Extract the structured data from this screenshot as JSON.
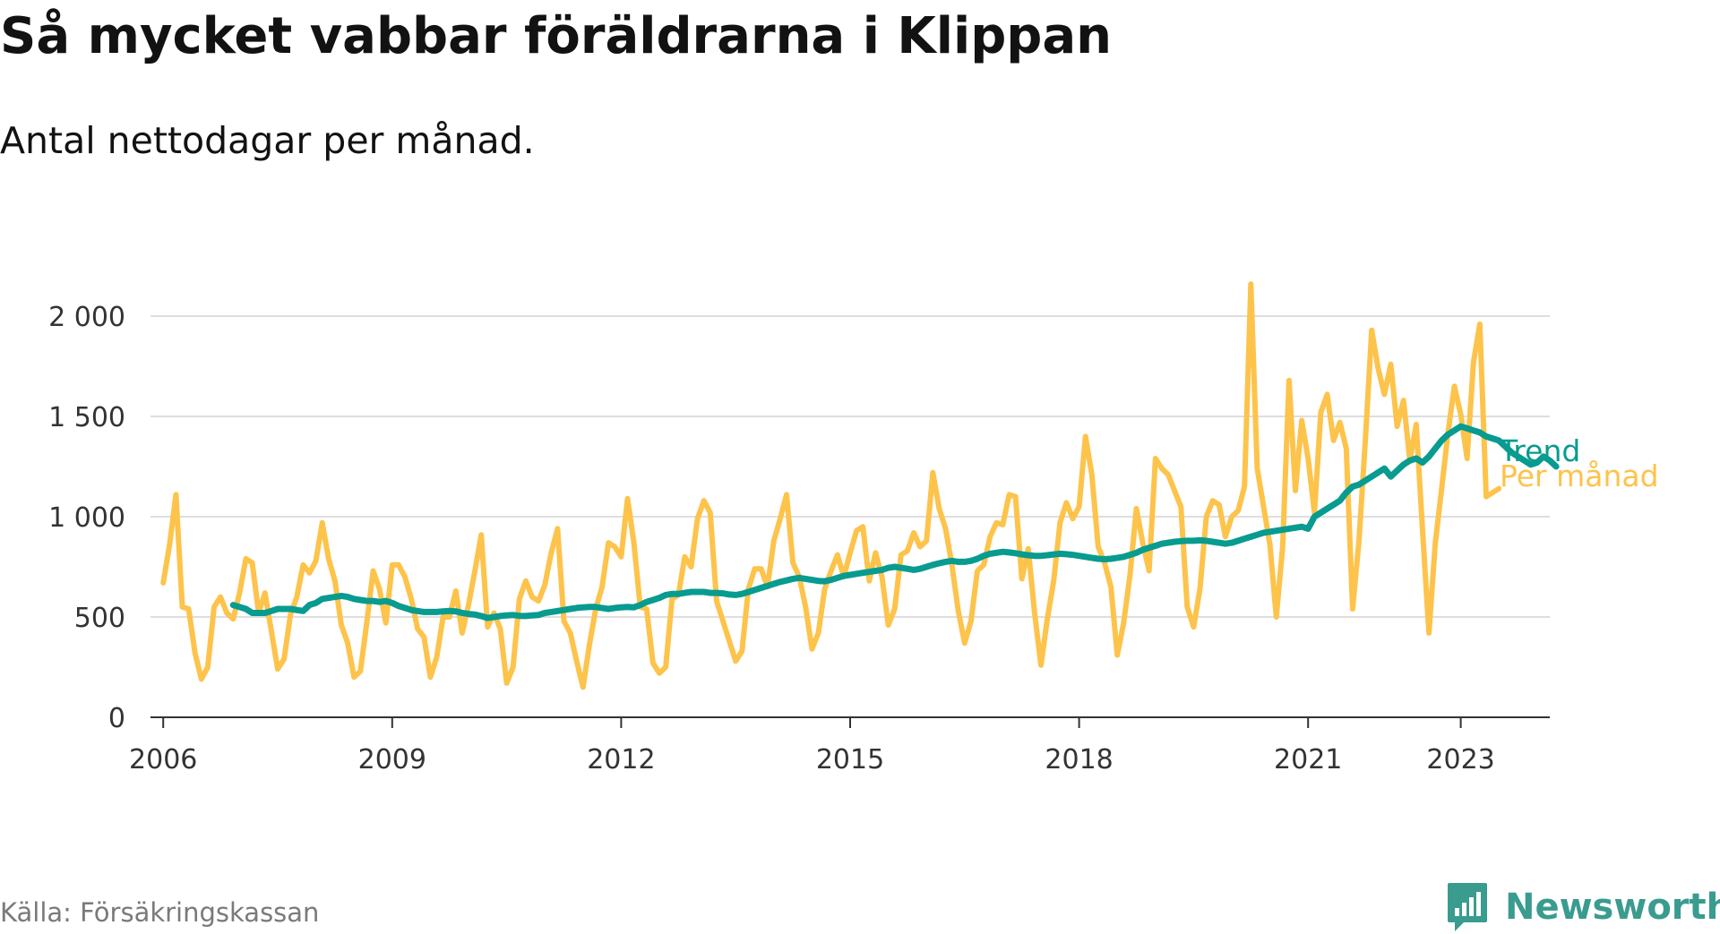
{
  "title": "Så mycket vabbar föräldrarna i Klippan",
  "subtitle": "Antal nettodagar per månad.",
  "source": "Källa: Försäkringskassan",
  "brand": {
    "name": "Newsworthy",
    "icon": "newsworthy-logo-icon",
    "color": "#3a9b8f"
  },
  "chart_data": {
    "type": "line",
    "title": "Så mycket vabbar föräldrarna i Klippan",
    "subtitle": "Antal nettodagar per månad.",
    "xlabel": "",
    "ylabel": "",
    "ylim": [
      0,
      2000
    ],
    "yticks": [
      {
        "value": 0,
        "label": "0"
      },
      {
        "value": 500,
        "label": "500"
      },
      {
        "value": 1000,
        "label": "1 000"
      },
      {
        "value": 1500,
        "label": "1 500"
      },
      {
        "value": 2000,
        "label": "2 000"
      }
    ],
    "xlim": [
      "2006-01",
      "2024-01"
    ],
    "xticks": [
      {
        "value": "2006-01",
        "label": "2006"
      },
      {
        "value": "2009-01",
        "label": "2009"
      },
      {
        "value": "2012-01",
        "label": "2012"
      },
      {
        "value": "2015-01",
        "label": "2015"
      },
      {
        "value": "2018-01",
        "label": "2018"
      },
      {
        "value": "2021-01",
        "label": "2021"
      },
      {
        "value": "2023-01",
        "label": "2023"
      }
    ],
    "grid": true,
    "legend": "inline labels at line ends",
    "series": [
      {
        "name": "Per månad",
        "color": "#fdc34b",
        "start": "2006-01",
        "values": [
          670,
          860,
          1110,
          550,
          540,
          320,
          190,
          250,
          550,
          600,
          520,
          490,
          620,
          790,
          770,
          520,
          620,
          430,
          240,
          290,
          510,
          600,
          760,
          720,
          780,
          970,
          790,
          680,
          460,
          370,
          200,
          230,
          470,
          730,
          640,
          470,
          760,
          760,
          700,
          590,
          440,
          400,
          200,
          300,
          500,
          500,
          630,
          420,
          560,
          730,
          910,
          450,
          520,
          440,
          170,
          250,
          590,
          680,
          600,
          580,
          660,
          820,
          940,
          480,
          420,
          280,
          150,
          360,
          540,
          650,
          870,
          850,
          800,
          1090,
          870,
          550,
          540,
          270,
          220,
          250,
          590,
          610,
          800,
          750,
          990,
          1080,
          1020,
          580,
          480,
          380,
          280,
          330,
          640,
          740,
          740,
          650,
          880,
          990,
          1110,
          770,
          700,
          550,
          340,
          420,
          640,
          730,
          810,
          700,
          820,
          930,
          950,
          680,
          820,
          700,
          460,
          540,
          810,
          830,
          920,
          850,
          880,
          1220,
          1040,
          940,
          760,
          530,
          370,
          480,
          730,
          760,
          900,
          970,
          960,
          1110,
          1100,
          690,
          840,
          520,
          260,
          490,
          680,
          970,
          1070,
          990,
          1050,
          1400,
          1210,
          850,
          770,
          650,
          310,
          470,
          710,
          1040,
          870,
          730,
          1290,
          1240,
          1210,
          1130,
          1050,
          550,
          450,
          640,
          1000,
          1080,
          1060,
          900,
          1000,
          1030,
          1150,
          2160,
          1240,
          1050,
          860,
          500,
          850,
          1680,
          1130,
          1480,
          1290,
          1020,
          1520,
          1610,
          1380,
          1470,
          1340,
          540,
          880,
          1380,
          1930,
          1740,
          1610,
          1760,
          1450,
          1580,
          1280,
          1460,
          930,
          420,
          870,
          1140,
          1420,
          1650,
          1510,
          1290,
          1770,
          1960,
          1100,
          1120,
          1140
        ]
      },
      {
        "name": "Trend",
        "color": "#089b8f",
        "start": "2006-12",
        "values": [
          560,
          550,
          540,
          520,
          520,
          520,
          530,
          540,
          540,
          540,
          535,
          530,
          560,
          570,
          590,
          595,
          600,
          605,
          600,
          590,
          585,
          580,
          580,
          575,
          580,
          570,
          555,
          545,
          535,
          530,
          525,
          525,
          525,
          528,
          530,
          528,
          520,
          515,
          512,
          505,
          495,
          500,
          505,
          508,
          510,
          506,
          505,
          508,
          510,
          520,
          525,
          530,
          535,
          540,
          545,
          548,
          550,
          550,
          545,
          540,
          545,
          548,
          550,
          548,
          560,
          575,
          585,
          595,
          610,
          615,
          615,
          620,
          625,
          625,
          625,
          620,
          620,
          618,
          612,
          610,
          615,
          625,
          635,
          645,
          655,
          665,
          675,
          682,
          690,
          695,
          690,
          685,
          680,
          678,
          685,
          695,
          705,
          710,
          715,
          720,
          725,
          730,
          735,
          745,
          750,
          745,
          740,
          735,
          740,
          750,
          760,
          768,
          775,
          780,
          775,
          775,
          780,
          790,
          805,
          815,
          820,
          825,
          822,
          818,
          812,
          808,
          805,
          805,
          808,
          812,
          815,
          813,
          810,
          805,
          800,
          795,
          790,
          788,
          790,
          795,
          800,
          810,
          820,
          835,
          845,
          855,
          865,
          870,
          875,
          878,
          880,
          880,
          882,
          880,
          875,
          870,
          865,
          870,
          880,
          890,
          900,
          910,
          920,
          925,
          930,
          935,
          940,
          945,
          950,
          940,
          1000,
          1020,
          1040,
          1060,
          1080,
          1120,
          1150,
          1160,
          1180,
          1200,
          1220,
          1240,
          1200,
          1230,
          1260,
          1280,
          1290,
          1270,
          1300,
          1340,
          1380,
          1410,
          1430,
          1450,
          1440,
          1430,
          1420,
          1400,
          1390,
          1380,
          1350,
          1320,
          1300,
          1280,
          1260,
          1270,
          1300,
          1280,
          1250
        ]
      }
    ]
  }
}
